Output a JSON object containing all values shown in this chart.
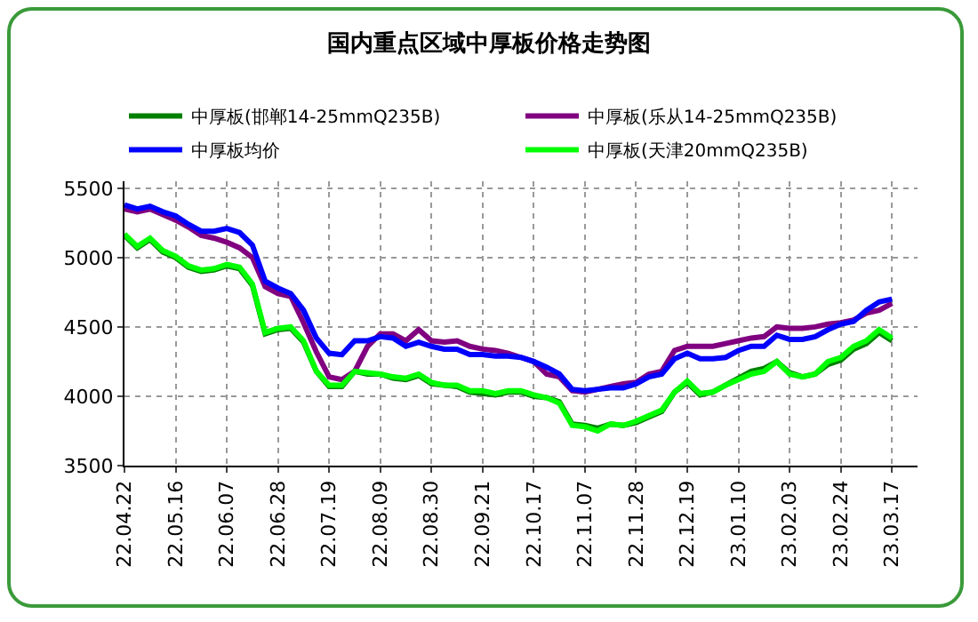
{
  "chart_data": {
    "type": "line",
    "title": "国内重点区域中厚板价格走势图",
    "categories": [
      "22.04.22",
      null,
      null,
      null,
      "22.05.16",
      null,
      null,
      null,
      "22.06.07",
      null,
      null,
      null,
      "22.06.28",
      null,
      null,
      null,
      "22.07.19",
      null,
      null,
      null,
      "22.08.09",
      null,
      null,
      null,
      "22.08.30",
      null,
      null,
      null,
      "22.09.21",
      null,
      null,
      null,
      "22.10.17",
      null,
      null,
      null,
      "22.11.07",
      null,
      null,
      null,
      "22.11.28",
      null,
      null,
      null,
      "22.12.19",
      null,
      null,
      null,
      "23.01.10",
      null,
      null,
      null,
      "23.02.03",
      null,
      null,
      null,
      "23.02.24",
      null,
      null,
      null,
      "23.03.17"
    ],
    "series": [
      {
        "name": "中厚板(邯郸14-25mmQ235B)",
        "color": "#008000",
        "values": [
          5160,
          5070,
          5130,
          5040,
          5000,
          4930,
          4900,
          4910,
          4940,
          4920,
          4800,
          4450,
          4480,
          4490,
          4390,
          4180,
          4070,
          4070,
          4180,
          4160,
          4160,
          4130,
          4120,
          4150,
          4090,
          4080,
          4070,
          4030,
          4020,
          4010,
          4030,
          4030,
          4000,
          3990,
          3960,
          3800,
          3790,
          3770,
          3800,
          3790,
          3810,
          3850,
          3890,
          4030,
          4100,
          4010,
          4030,
          4080,
          4130,
          4180,
          4200,
          4250,
          4170,
          4140,
          4160,
          4230,
          4260,
          4340,
          4380,
          4460,
          4400
        ]
      },
      {
        "name": "中厚板(乐从14-25mmQ235B)",
        "color": "#800080",
        "values": [
          5350,
          5330,
          5350,
          5310,
          5270,
          5220,
          5160,
          5140,
          5110,
          5070,
          5000,
          4790,
          4740,
          4720,
          4530,
          4320,
          4140,
          4120,
          4180,
          4360,
          4450,
          4450,
          4400,
          4480,
          4400,
          4390,
          4400,
          4360,
          4340,
          4330,
          4310,
          4280,
          4250,
          4160,
          4140,
          4040,
          4030,
          4050,
          4070,
          4090,
          4100,
          4160,
          4180,
          4330,
          4360,
          4360,
          4360,
          4380,
          4400,
          4420,
          4430,
          4500,
          4490,
          4490,
          4500,
          4520,
          4530,
          4550,
          4600,
          4620,
          4670
        ]
      },
      {
        "name": "中厚板均价",
        "color": "#0000ff",
        "values": [
          5380,
          5350,
          5370,
          5330,
          5300,
          5240,
          5190,
          5190,
          5210,
          5180,
          5090,
          4830,
          4780,
          4740,
          4620,
          4420,
          4310,
          4300,
          4400,
          4400,
          4430,
          4420,
          4360,
          4390,
          4360,
          4340,
          4340,
          4300,
          4300,
          4290,
          4290,
          4280,
          4250,
          4210,
          4160,
          4050,
          4040,
          4050,
          4060,
          4060,
          4090,
          4140,
          4160,
          4270,
          4310,
          4270,
          4270,
          4280,
          4330,
          4360,
          4360,
          4440,
          4410,
          4410,
          4430,
          4480,
          4520,
          4540,
          4620,
          4680,
          4700
        ]
      },
      {
        "name": "中厚板(天津20mmQ235B)",
        "color": "#00ff00",
        "values": [
          5170,
          5080,
          5140,
          5050,
          5010,
          4940,
          4910,
          4920,
          4950,
          4930,
          4810,
          4460,
          4490,
          4500,
          4400,
          4180,
          4080,
          4080,
          4180,
          4170,
          4160,
          4140,
          4130,
          4160,
          4100,
          4080,
          4080,
          4040,
          4040,
          4020,
          4040,
          4040,
          4010,
          3990,
          3950,
          3790,
          3780,
          3750,
          3800,
          3790,
          3820,
          3860,
          3900,
          4030,
          4110,
          4020,
          4030,
          4080,
          4120,
          4160,
          4180,
          4250,
          4160,
          4140,
          4160,
          4250,
          4280,
          4360,
          4400,
          4480,
          4420
        ]
      }
    ],
    "ylim": [
      3500,
      5550
    ],
    "yticks": [
      3500,
      4000,
      4500,
      5000,
      5500
    ],
    "grid": true,
    "legend": "top",
    "marker": "none",
    "line_style": "solid"
  }
}
